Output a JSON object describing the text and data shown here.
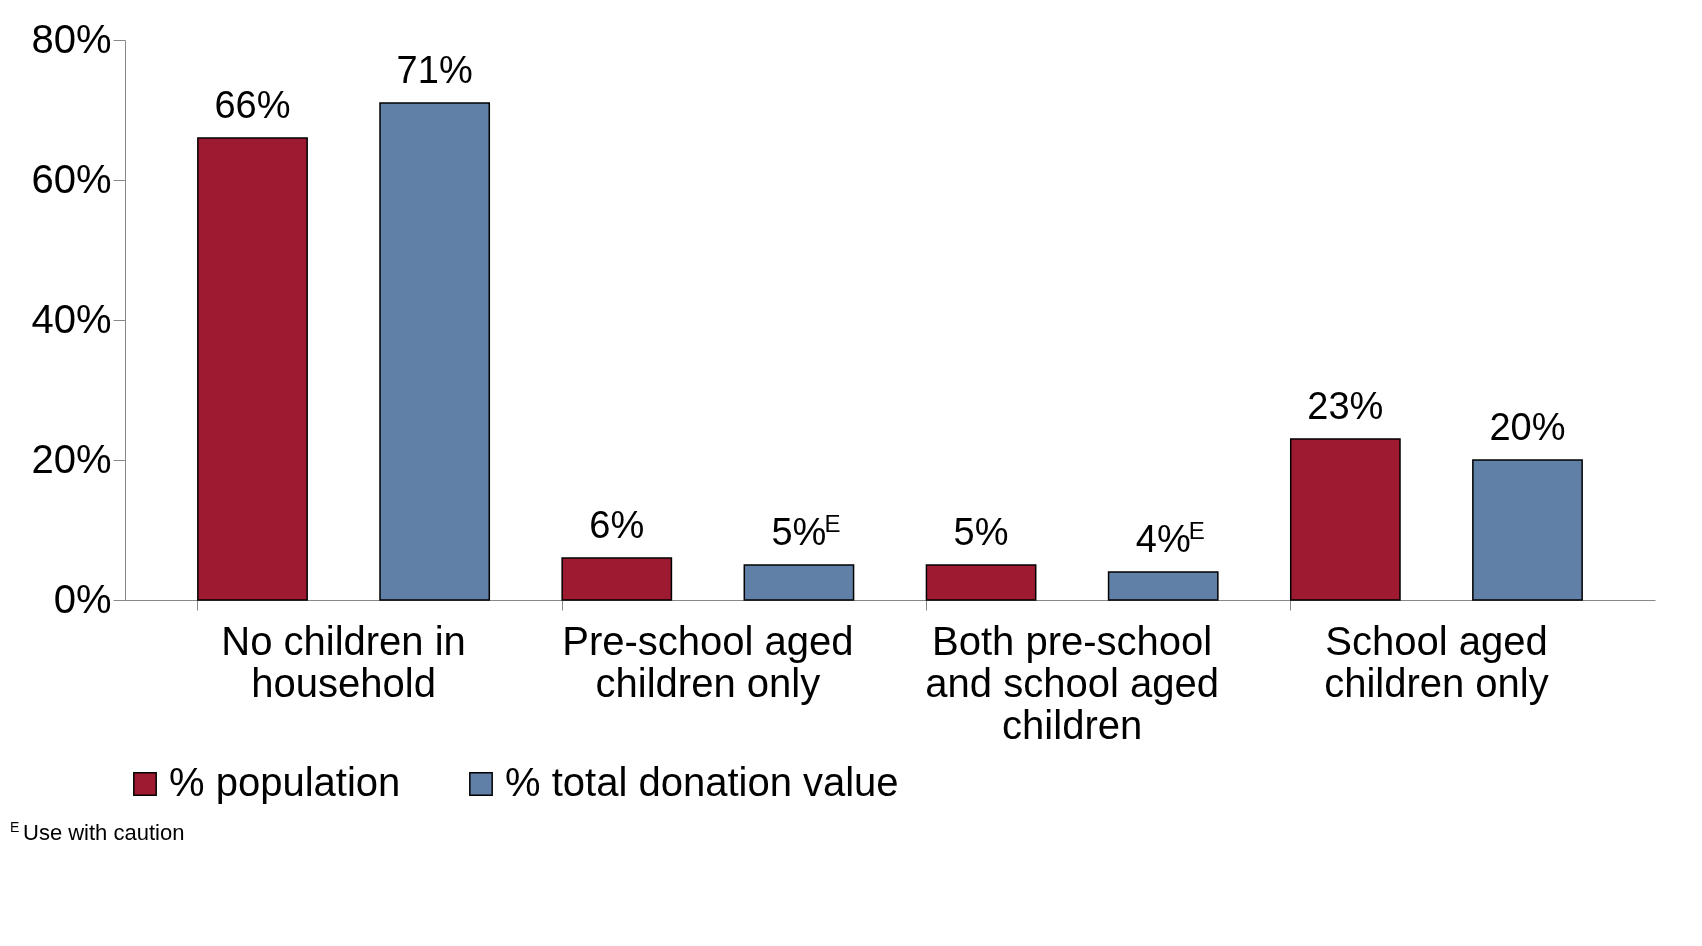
{
  "chart_data": {
    "type": "bar",
    "categories": [
      "No children in household",
      "Pre-school aged children only",
      "Both pre-school and school aged children",
      "School aged children only"
    ],
    "series": [
      {
        "name": "% population",
        "color": "#9e1a30",
        "values": [
          66,
          6,
          5,
          23
        ],
        "value_labels": [
          "66%",
          "6%",
          "5%",
          "23%"
        ]
      },
      {
        "name": "% total donation value",
        "color": "#6080a8",
        "values": [
          71,
          5,
          4,
          20
        ],
        "value_labels": [
          "71%",
          "5%$^{E}$",
          "4%$^{E}$",
          "20%"
        ]
      }
    ],
    "ylim": [
      0,
      80
    ],
    "yticks": [
      {
        "value": 0,
        "label": "0%"
      },
      {
        "value": 20,
        "label": "20%"
      },
      {
        "value": 40,
        "label": "40%"
      },
      {
        "value": 60,
        "label": "60%"
      },
      {
        "value": 80,
        "label": "80%"
      }
    ],
    "grid": false,
    "legend": "bottom",
    "annotations": [
      "$^{E}$ Use with caution"
    ]
  }
}
